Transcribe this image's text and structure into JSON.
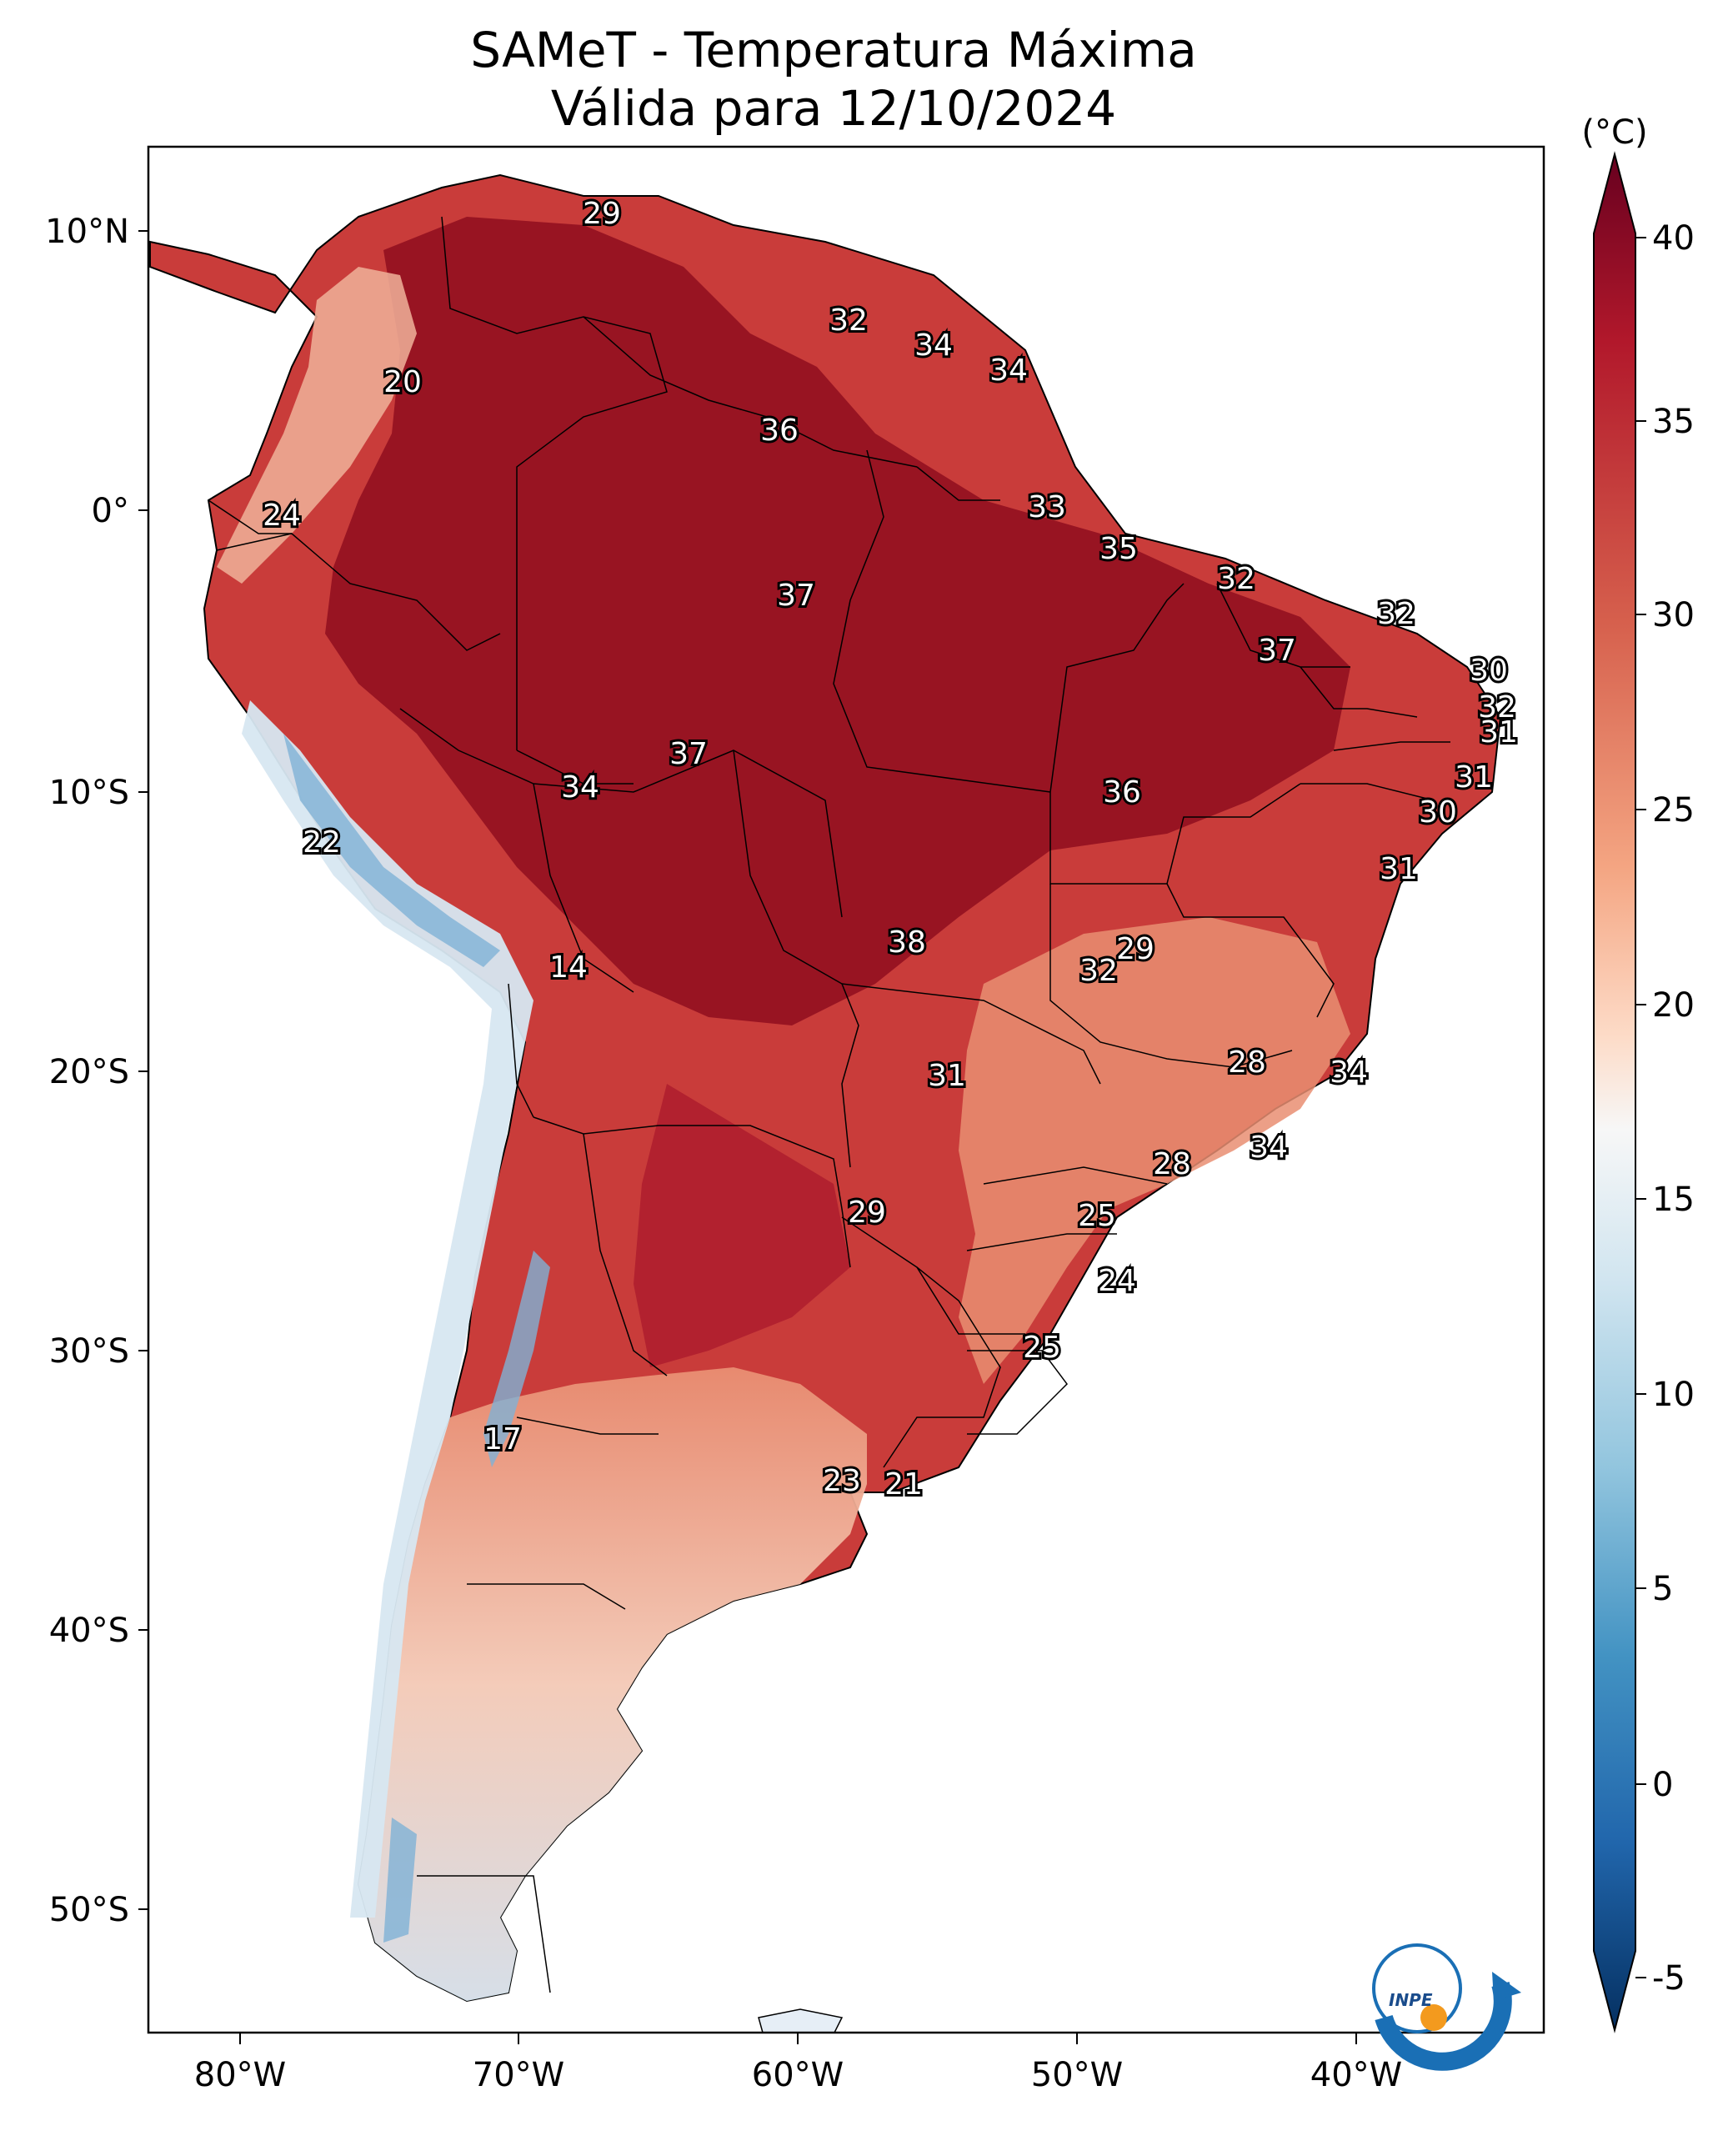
{
  "map": {
    "title_line1": "SAMeT - Temperatura Máxima",
    "title_line2": "Válida para 12/10/2024",
    "lon_ticks": [
      "80°W",
      "70°W",
      "60°W",
      "50°W",
      "40°W"
    ],
    "lat_ticks": [
      "10°N",
      "0°",
      "10°S",
      "20°S",
      "30°S",
      "40°S",
      "50°S"
    ],
    "colorbar": {
      "unit_label": "(°C)",
      "ticks": [
        "40",
        "35",
        "30",
        "25",
        "20",
        "15",
        "10",
        "5",
        "0",
        "-5"
      ],
      "colors": [
        "#67001f",
        "#b2182b",
        "#d6604d",
        "#f4a582",
        "#fddbc7",
        "#f7f7f7",
        "#d1e5f0",
        "#92c5de",
        "#4393c3",
        "#2166ac",
        "#053061"
      ]
    },
    "logo_text": "INPE",
    "region_colors": {
      "hot": "#8f0d1f",
      "warm": "#c93c3a",
      "mild": "#e98e72",
      "cool": "#f6d3c0",
      "cold": "#d7e7f1",
      "coldest": "#7fb1d6"
    }
  },
  "values": [
    {
      "t": "29"
    },
    {
      "t": "32"
    },
    {
      "t": "34"
    },
    {
      "t": "34"
    },
    {
      "t": "20"
    },
    {
      "t": "36"
    },
    {
      "t": "24"
    },
    {
      "t": "33"
    },
    {
      "t": "35"
    },
    {
      "t": "32"
    },
    {
      "t": "37"
    },
    {
      "t": "32"
    },
    {
      "t": "37"
    },
    {
      "t": "30"
    },
    {
      "t": "32"
    },
    {
      "t": "31"
    },
    {
      "t": "37"
    },
    {
      "t": "34"
    },
    {
      "t": "36"
    },
    {
      "t": "31"
    },
    {
      "t": "30"
    },
    {
      "t": "22"
    },
    {
      "t": "31"
    },
    {
      "t": "14"
    },
    {
      "t": "38"
    },
    {
      "t": "29"
    },
    {
      "t": "32"
    },
    {
      "t": "28"
    },
    {
      "t": "31"
    },
    {
      "t": "34"
    },
    {
      "t": "34"
    },
    {
      "t": "28"
    },
    {
      "t": "29"
    },
    {
      "t": "25"
    },
    {
      "t": "24"
    },
    {
      "t": "25"
    },
    {
      "t": "17"
    },
    {
      "t": "23"
    },
    {
      "t": "21"
    }
  ]
}
